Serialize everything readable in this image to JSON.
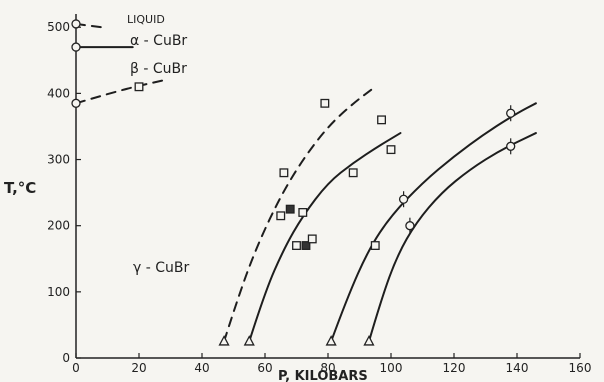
{
  "chart_data": {
    "type": "scatter",
    "xlabel": "P, KILOBARS",
    "ylabel": "T,°C",
    "xlim": [
      0,
      160
    ],
    "ylim": [
      0,
      520
    ],
    "xticks": [
      "0",
      "20",
      "40",
      "60",
      "80",
      "100",
      "120",
      "140",
      "160"
    ],
    "yticks": [
      "0",
      "100",
      "200",
      "300",
      "400",
      "500"
    ],
    "annotations": {
      "liquid": "LIQUID",
      "alpha": "α - CuBr",
      "beta": "β - CuBr",
      "gamma": "γ - CuBr"
    },
    "curves": [
      {
        "style": "dashed",
        "x": [
          0,
          8
        ],
        "y": [
          505,
          500
        ]
      },
      {
        "style": "solid",
        "x": [
          0,
          18
        ],
        "y": [
          470,
          470
        ]
      },
      {
        "style": "dashed",
        "x": [
          0,
          14,
          28
        ],
        "y": [
          385,
          405,
          420
        ]
      },
      {
        "style": "dashed",
        "x": [
          47,
          52,
          58,
          65,
          72,
          80,
          88,
          95
        ],
        "y": [
          25,
          100,
          175,
          245,
          300,
          350,
          385,
          410
        ]
      },
      {
        "style": "solid",
        "x": [
          55,
          60,
          66,
          72,
          80,
          88,
          96,
          103
        ],
        "y": [
          25,
          100,
          165,
          215,
          265,
          295,
          320,
          340
        ]
      },
      {
        "style": "solid",
        "x": [
          81,
          86,
          93,
          100,
          110,
          120,
          130,
          140,
          146
        ],
        "y": [
          25,
          90,
          165,
          215,
          265,
          305,
          340,
          370,
          385
        ]
      },
      {
        "style": "solid",
        "x": [
          93,
          97,
          102,
          108,
          116,
          125,
          135,
          146
        ],
        "y": [
          25,
          90,
          155,
          205,
          250,
          285,
          315,
          340
        ]
      }
    ],
    "points": [
      {
        "marker": "circle",
        "x": 0,
        "y": 505
      },
      {
        "marker": "circle",
        "x": 0,
        "y": 470
      },
      {
        "marker": "circle",
        "x": 0,
        "y": 385
      },
      {
        "marker": "square",
        "x": 20,
        "y": 410
      },
      {
        "marker": "square",
        "x": 66,
        "y": 280
      },
      {
        "marker": "square",
        "x": 65,
        "y": 215
      },
      {
        "marker": "square_filled",
        "x": 68,
        "y": 225
      },
      {
        "marker": "square",
        "x": 72,
        "y": 220
      },
      {
        "marker": "square",
        "x": 70,
        "y": 170
      },
      {
        "marker": "square_filled",
        "x": 73,
        "y": 170
      },
      {
        "marker": "square",
        "x": 75,
        "y": 180
      },
      {
        "marker": "square",
        "x": 79,
        "y": 385
      },
      {
        "marker": "square",
        "x": 88,
        "y": 280
      },
      {
        "marker": "square",
        "x": 97,
        "y": 360
      },
      {
        "marker": "square",
        "x": 100,
        "y": 315
      },
      {
        "marker": "square",
        "x": 95,
        "y": 170
      },
      {
        "marker": "triangle",
        "x": 47,
        "y": 25
      },
      {
        "marker": "triangle",
        "x": 55,
        "y": 25
      },
      {
        "marker": "triangle",
        "x": 81,
        "y": 25
      },
      {
        "marker": "triangle",
        "x": 93,
        "y": 25
      },
      {
        "marker": "circle_tick",
        "x": 104,
        "y": 240
      },
      {
        "marker": "circle_tick",
        "x": 106,
        "y": 200
      },
      {
        "marker": "circle_tick",
        "x": 138,
        "y": 370
      },
      {
        "marker": "circle_tick",
        "x": 138,
        "y": 320
      }
    ]
  }
}
